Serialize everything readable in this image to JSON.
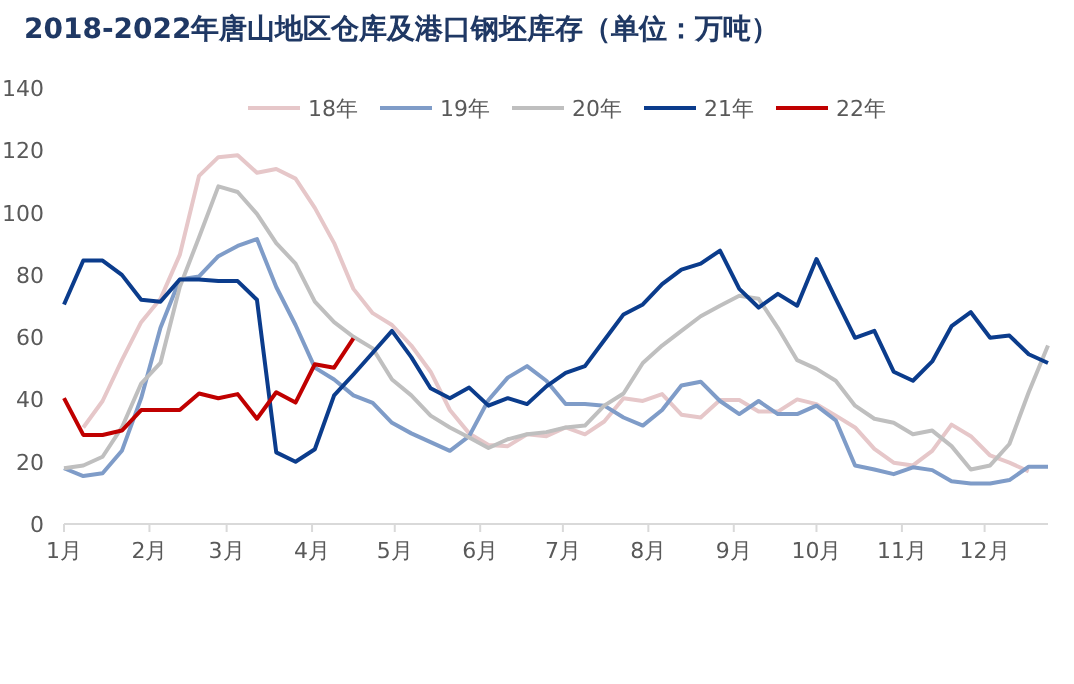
{
  "chart_data": {
    "type": "line",
    "title": "2018-2022年唐山地区仓库及港口钢坯库存（单位：万吨）",
    "x": [
      "--01-01",
      "--01-08",
      "--01-15",
      "--01-22",
      "--01-29",
      "--02-05",
      "--02-12",
      "--02-19",
      "--02-26",
      "--03-05",
      "--03-12",
      "--03-19",
      "--03-26",
      "--04-02",
      "--04-09",
      "--04-16",
      "--04-23",
      "--04-30",
      "--05-07",
      "--05-14",
      "--05-21",
      "--05-28",
      "--06-04",
      "--06-11",
      "--06-18",
      "--06-25",
      "--07-02",
      "--07-09",
      "--07-16",
      "--07-23",
      "--07-30",
      "--08-06",
      "--08-13",
      "--08-20",
      "--08-27",
      "--09-03",
      "--09-10",
      "--09-17",
      "--09-24",
      "--10-01",
      "--10-08",
      "--10-15",
      "--10-22",
      "--10-29",
      "--11-05",
      "--11-12",
      "--11-19",
      "--11-26",
      "--12-03",
      "--12-10",
      "--12-17",
      "--12-24"
    ],
    "xlim": [
      "--01-01",
      "--12-24"
    ],
    "xticks": [
      {
        "value": "--01-01",
        "label": "1月"
      },
      {
        "value": "--02-01",
        "label": "2月"
      },
      {
        "value": "--03-01",
        "label": "3月"
      },
      {
        "value": "--04-01",
        "label": "4月"
      },
      {
        "value": "--05-01",
        "label": "5月"
      },
      {
        "value": "--06-01",
        "label": "6月"
      },
      {
        "value": "--07-01",
        "label": "7月"
      },
      {
        "value": "--08-01",
        "label": "8月"
      },
      {
        "value": "--09-01",
        "label": "9月"
      },
      {
        "value": "--10-01",
        "label": "10月"
      },
      {
        "value": "--11-01",
        "label": "11月"
      },
      {
        "value": "--12-01",
        "label": "12月"
      }
    ],
    "ylim": [
      0,
      140
    ],
    "yticks": [
      0,
      20,
      40,
      60,
      80,
      100,
      120,
      140
    ],
    "grid": false,
    "legend": "top",
    "marker": "none",
    "line_style": "solid",
    "series": [
      {
        "name": "18年",
        "color": "#e6c7c9",
        "values": [
          null,
          31,
          39.5,
          52.6,
          64.8,
          72.3,
          86.4,
          111.8,
          117.8,
          118.4,
          112.8,
          114,
          110.9,
          101.5,
          90.2,
          75.5,
          67.7,
          63.9,
          57.3,
          48.9,
          36.6,
          29.1,
          25.4,
          25,
          28.8,
          28.2,
          31,
          28.8,
          32.9,
          40.4,
          39.5,
          41.7,
          35.1,
          34.2,
          39.8,
          39.8,
          36.1,
          36.1,
          40,
          38.5,
          34.8,
          31,
          24.1,
          19.7,
          18.8,
          23.5,
          31.9,
          28.2,
          22,
          19.7,
          16.9,
          null
        ]
      },
      {
        "name": "19年",
        "color": "#7f9cc8",
        "values": [
          17.9,
          15.4,
          16.3,
          23.5,
          40.4,
          63,
          78.5,
          79.5,
          86,
          89.3,
          91.5,
          76.1,
          63.9,
          50.2,
          46.4,
          41.3,
          38.9,
          32.5,
          29.1,
          26.3,
          23.5,
          28.2,
          39.8,
          47,
          50.7,
          46,
          38.5,
          38.5,
          38,
          34.2,
          31.6,
          36.6,
          44.5,
          45.7,
          39.5,
          35.3,
          39.5,
          35.3,
          35.3,
          38,
          33.3,
          18.8,
          17.5,
          16,
          18.2,
          17.3,
          13.7,
          13,
          13,
          14.1,
          18.4,
          18.4
        ]
      },
      {
        "name": "20年",
        "color": "#bfbfbf",
        "values": [
          17.9,
          18.8,
          21.6,
          31,
          45.1,
          51.7,
          76.1,
          92.1,
          108.4,
          106.6,
          99.6,
          90.2,
          83.6,
          71.4,
          64.8,
          60.1,
          56.4,
          46.4,
          41.3,
          34.8,
          31,
          27.8,
          24.4,
          27.2,
          28.8,
          29.5,
          31,
          31.6,
          38,
          41.9,
          51.7,
          57.3,
          62,
          66.7,
          70.1,
          73.3,
          72.3,
          63,
          52.6,
          49.8,
          46,
          38,
          33.8,
          32.5,
          28.8,
          30,
          25,
          17.5,
          18.8,
          25.7,
          42.3,
          57.3
        ]
      },
      {
        "name": "21年",
        "color": "#0b3c8c",
        "values": [
          70.5,
          84.6,
          84.6,
          80,
          72,
          71.4,
          78.5,
          78.5,
          78,
          78,
          72,
          23,
          20,
          24,
          41.3,
          48,
          55,
          62,
          53.6,
          43.6,
          40.4,
          43.8,
          38,
          40.4,
          38.5,
          44.2,
          48.5,
          50.7,
          59,
          67.3,
          70.5,
          77,
          81.7,
          83.6,
          87.8,
          75.5,
          69.5,
          73.9,
          70.1,
          85.1,
          72.3,
          59.8,
          62,
          48.9,
          46,
          52.2,
          63.5,
          68,
          59.8,
          60.5,
          54.5,
          51.7
        ]
      },
      {
        "name": "22年",
        "color": "#c00000",
        "values": [
          40.4,
          28.6,
          28.6,
          30,
          36.6,
          36.6,
          36.6,
          41.9,
          40.4,
          41.7,
          33.8,
          42.3,
          39,
          51.3,
          50.2,
          59.6,
          null,
          null,
          null,
          null,
          null,
          null,
          null,
          null,
          null,
          null,
          null,
          null,
          null,
          null,
          null,
          null,
          null,
          null,
          null,
          null,
          null,
          null,
          null,
          null,
          null,
          null,
          null,
          null,
          null,
          null,
          null,
          null,
          null,
          null,
          null,
          null
        ]
      }
    ]
  }
}
